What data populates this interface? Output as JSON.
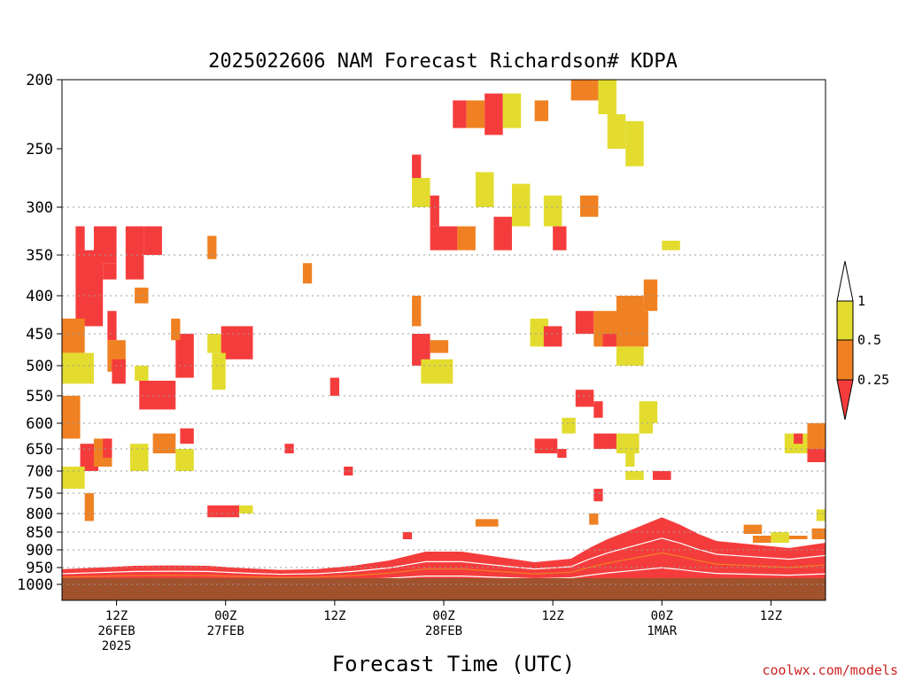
{
  "chart_data": {
    "type": "heatmap",
    "title": "2025022606 NAM Forecast Richardson# KDPA",
    "xlabel": "Forecast Time (UTC)",
    "ylabel": "",
    "credit": "coolwx.com/models",
    "y_scale": "pressure (hPa), inverted, log-like",
    "ylim": [
      1000,
      200
    ],
    "y_ticks": [
      "200",
      "250",
      "300",
      "350",
      "400",
      "450",
      "500",
      "550",
      "600",
      "650",
      "700",
      "750",
      "800",
      "850",
      "900",
      "950",
      "1000"
    ],
    "y_gridlines": [
      "300",
      "350",
      "400",
      "450",
      "500",
      "550",
      "600",
      "650",
      "700",
      "750",
      "800",
      "850",
      "900",
      "950",
      "1000"
    ],
    "xlim_hours": [
      0,
      84
    ],
    "x_ticks": [
      {
        "hour": 6,
        "lines": [
          "12Z",
          "26FEB",
          "2025"
        ]
      },
      {
        "hour": 18,
        "lines": [
          "00Z",
          "27FEB"
        ]
      },
      {
        "hour": 30,
        "lines": [
          "12Z"
        ]
      },
      {
        "hour": 42,
        "lines": [
          "00Z",
          "28FEB"
        ]
      },
      {
        "hour": 54,
        "lines": [
          "12Z"
        ]
      },
      {
        "hour": 66,
        "lines": [
          "00Z",
          "1MAR"
        ]
      },
      {
        "hour": 78,
        "lines": [
          "12Z"
        ]
      }
    ],
    "legend": {
      "placement": "right",
      "levels": [
        "1",
        "0.5",
        "0.25"
      ],
      "bins": [
        {
          "label": "> 1",
          "color": "#ffffff"
        },
        {
          "label": "0.5 - 1",
          "color": "#e3dc2f"
        },
        {
          "label": "0.25 - 0.5",
          "color": "#ef8122"
        },
        {
          "label": "< 0.25",
          "color": "#f53c3c"
        }
      ]
    },
    "ground_color": "#a0522d",
    "colors": {
      "low": "#f53c3c",
      "mid": "#ef8122",
      "high": "#e3dc2f",
      "ground": "#a0522d",
      "credit": "#cc2222"
    },
    "blocks": [
      {
        "h": [
          1.5,
          2.5
        ],
        "p": [
          320,
          345
        ],
        "c": "low"
      },
      {
        "h": [
          1.5,
          4.5
        ],
        "p": [
          345,
          440
        ],
        "c": "low"
      },
      {
        "h": [
          0,
          2.5
        ],
        "p": [
          430,
          480
        ],
        "c": "mid"
      },
      {
        "h": [
          0,
          3.5
        ],
        "p": [
          480,
          530
        ],
        "c": "high"
      },
      {
        "h": [
          3.5,
          6
        ],
        "p": [
          320,
          360
        ],
        "c": "low"
      },
      {
        "h": [
          4.5,
          6
        ],
        "p": [
          360,
          380
        ],
        "c": "low"
      },
      {
        "h": [
          5,
          6
        ],
        "p": [
          420,
          460
        ],
        "c": "low"
      },
      {
        "h": [
          5,
          7
        ],
        "p": [
          460,
          510
        ],
        "c": "mid"
      },
      {
        "h": [
          5.5,
          7
        ],
        "p": [
          490,
          530
        ],
        "c": "low"
      },
      {
        "h": [
          7,
          9
        ],
        "p": [
          320,
          380
        ],
        "c": "low"
      },
      {
        "h": [
          9,
          11
        ],
        "p": [
          320,
          350
        ],
        "c": "low"
      },
      {
        "h": [
          8,
          9.5
        ],
        "p": [
          390,
          410
        ],
        "c": "mid"
      },
      {
        "h": [
          8,
          9.5
        ],
        "p": [
          500,
          525
        ],
        "c": "high"
      },
      {
        "h": [
          8.5,
          12.5
        ],
        "p": [
          525,
          575
        ],
        "c": "low"
      },
      {
        "h": [
          12.5,
          14.5
        ],
        "p": [
          450,
          520
        ],
        "c": "low"
      },
      {
        "h": [
          12,
          13
        ],
        "p": [
          430,
          460
        ],
        "c": "mid"
      },
      {
        "h": [
          0,
          2
        ],
        "p": [
          550,
          630
        ],
        "c": "mid"
      },
      {
        "h": [
          2,
          4
        ],
        "p": [
          640,
          700
        ],
        "c": "low"
      },
      {
        "h": [
          3.5,
          5.5
        ],
        "p": [
          630,
          690
        ],
        "c": "mid"
      },
      {
        "h": [
          0,
          2.5
        ],
        "p": [
          690,
          740
        ],
        "c": "high"
      },
      {
        "h": [
          2.5,
          3.5
        ],
        "p": [
          750,
          820
        ],
        "c": "mid"
      },
      {
        "h": [
          4.5,
          5.5
        ],
        "p": [
          630,
          670
        ],
        "c": "low"
      },
      {
        "h": [
          7.5,
          9.5
        ],
        "p": [
          640,
          700
        ],
        "c": "high"
      },
      {
        "h": [
          10,
          12.5
        ],
        "p": [
          620,
          660
        ],
        "c": "mid"
      },
      {
        "h": [
          12.5,
          14.5
        ],
        "p": [
          650,
          700
        ],
        "c": "high"
      },
      {
        "h": [
          13,
          14.5
        ],
        "p": [
          610,
          640
        ],
        "c": "low"
      },
      {
        "h": [
          16,
          17
        ],
        "p": [
          330,
          355
        ],
        "c": "mid"
      },
      {
        "h": [
          17.5,
          21
        ],
        "p": [
          440,
          490
        ],
        "c": "low"
      },
      {
        "h": [
          16,
          17.5
        ],
        "p": [
          450,
          480
        ],
        "c": "high"
      },
      {
        "h": [
          16.5,
          18
        ],
        "p": [
          480,
          540
        ],
        "c": "high"
      },
      {
        "h": [
          16,
          19.5
        ],
        "p": [
          780,
          810
        ],
        "c": "low"
      },
      {
        "h": [
          19.5,
          21
        ],
        "p": [
          780,
          800
        ],
        "c": "high"
      },
      {
        "h": [
          29.5,
          30.5
        ],
        "p": [
          520,
          550
        ],
        "c": "low"
      },
      {
        "h": [
          26.5,
          27.5
        ],
        "p": [
          360,
          385
        ],
        "c": "mid"
      },
      {
        "h": [
          24.5,
          25.5
        ],
        "p": [
          640,
          660
        ],
        "c": "low"
      },
      {
        "h": [
          31,
          32
        ],
        "p": [
          690,
          710
        ],
        "c": "low"
      },
      {
        "h": [
          38.5,
          39.5
        ],
        "p": [
          255,
          275
        ],
        "c": "low"
      },
      {
        "h": [
          38.5,
          40.5
        ],
        "p": [
          275,
          300
        ],
        "c": "high"
      },
      {
        "h": [
          40.5,
          41.5
        ],
        "p": [
          290,
          320
        ],
        "c": "low"
      },
      {
        "h": [
          40.5,
          43.5
        ],
        "p": [
          320,
          345
        ],
        "c": "low"
      },
      {
        "h": [
          43.5,
          45.5
        ],
        "p": [
          320,
          345
        ],
        "c": "mid"
      },
      {
        "h": [
          45.5,
          47.5
        ],
        "p": [
          270,
          300
        ],
        "c": "high"
      },
      {
        "h": [
          47.5,
          49.5
        ],
        "p": [
          310,
          345
        ],
        "c": "low"
      },
      {
        "h": [
          49.5,
          51.5
        ],
        "p": [
          280,
          320
        ],
        "c": "high"
      },
      {
        "h": [
          43,
          44.5
        ],
        "p": [
          215,
          235
        ],
        "c": "low"
      },
      {
        "h": [
          44.5,
          46.5
        ],
        "p": [
          215,
          235
        ],
        "c": "mid"
      },
      {
        "h": [
          46.5,
          48.5
        ],
        "p": [
          210,
          240
        ],
        "c": "low"
      },
      {
        "h": [
          48.5,
          50.5
        ],
        "p": [
          210,
          235
        ],
        "c": "high"
      },
      {
        "h": [
          52,
          53.5
        ],
        "p": [
          215,
          230
        ],
        "c": "mid"
      },
      {
        "h": [
          54,
          55.5
        ],
        "p": [
          320,
          345
        ],
        "c": "low"
      },
      {
        "h": [
          56,
          59
        ],
        "p": [
          200,
          215
        ],
        "c": "mid"
      },
      {
        "h": [
          59,
          61
        ],
        "p": [
          200,
          225
        ],
        "c": "high"
      },
      {
        "h": [
          60,
          62
        ],
        "p": [
          225,
          250
        ],
        "c": "high"
      },
      {
        "h": [
          62,
          64
        ],
        "p": [
          230,
          265
        ],
        "c": "high"
      },
      {
        "h": [
          57,
          59
        ],
        "p": [
          290,
          310
        ],
        "c": "mid"
      },
      {
        "h": [
          53,
          55
        ],
        "p": [
          290,
          320
        ],
        "c": "high"
      },
      {
        "h": [
          66,
          68
        ],
        "p": [
          335,
          345
        ],
        "c": "high"
      },
      {
        "h": [
          38.5,
          40.5
        ],
        "p": [
          450,
          500
        ],
        "c": "low"
      },
      {
        "h": [
          40.5,
          42.5
        ],
        "p": [
          460,
          480
        ],
        "c": "mid"
      },
      {
        "h": [
          39.5,
          43
        ],
        "p": [
          490,
          530
        ],
        "c": "high"
      },
      {
        "h": [
          38.5,
          39.5
        ],
        "p": [
          400,
          440
        ],
        "c": "mid"
      },
      {
        "h": [
          51.5,
          53.5
        ],
        "p": [
          430,
          470
        ],
        "c": "high"
      },
      {
        "h": [
          53,
          55
        ],
        "p": [
          440,
          470
        ],
        "c": "low"
      },
      {
        "h": [
          56.5,
          58.5
        ],
        "p": [
          420,
          450
        ],
        "c": "low"
      },
      {
        "h": [
          58.5,
          64.5
        ],
        "p": [
          420,
          470
        ],
        "c": "mid"
      },
      {
        "h": [
          59.5,
          61
        ],
        "p": [
          450,
          470
        ],
        "c": "low"
      },
      {
        "h": [
          61,
          64
        ],
        "p": [
          400,
          440
        ],
        "c": "mid"
      },
      {
        "h": [
          64,
          65.5
        ],
        "p": [
          380,
          420
        ],
        "c": "mid"
      },
      {
        "h": [
          61,
          64
        ],
        "p": [
          470,
          500
        ],
        "c": "high"
      },
      {
        "h": [
          56.5,
          58.5
        ],
        "p": [
          540,
          570
        ],
        "c": "low"
      },
      {
        "h": [
          58.5,
          59.5
        ],
        "p": [
          560,
          590
        ],
        "c": "low"
      },
      {
        "h": [
          63.5,
          65.5
        ],
        "p": [
          560,
          600
        ],
        "c": "high"
      },
      {
        "h": [
          55,
          56.5
        ],
        "p": [
          590,
          620
        ],
        "c": "high"
      },
      {
        "h": [
          52,
          54.5
        ],
        "p": [
          630,
          660
        ],
        "c": "low"
      },
      {
        "h": [
          54.5,
          55.5
        ],
        "p": [
          650,
          670
        ],
        "c": "low"
      },
      {
        "h": [
          58.5,
          61
        ],
        "p": [
          620,
          650
        ],
        "c": "low"
      },
      {
        "h": [
          61,
          63.5
        ],
        "p": [
          620,
          660
        ],
        "c": "high"
      },
      {
        "h": [
          63.5,
          65
        ],
        "p": [
          590,
          620
        ],
        "c": "high"
      },
      {
        "h": [
          62,
          63
        ],
        "p": [
          660,
          690
        ],
        "c": "high"
      },
      {
        "h": [
          65,
          67
        ],
        "p": [
          700,
          720
        ],
        "c": "low"
      },
      {
        "h": [
          62,
          64
        ],
        "p": [
          700,
          720
        ],
        "c": "high"
      },
      {
        "h": [
          79.5,
          82
        ],
        "p": [
          620,
          660
        ],
        "c": "high"
      },
      {
        "h": [
          82,
          84
        ],
        "p": [
          600,
          680
        ],
        "c": "mid"
      },
      {
        "h": [
          82,
          84
        ],
        "p": [
          650,
          680
        ],
        "c": "low"
      },
      {
        "h": [
          80.5,
          81.5
        ],
        "p": [
          620,
          640
        ],
        "c": "low"
      },
      {
        "h": [
          83,
          84
        ],
        "p": [
          790,
          820
        ],
        "c": "high"
      },
      {
        "h": [
          58.5,
          59.5
        ],
        "p": [
          740,
          770
        ],
        "c": "low"
      },
      {
        "h": [
          58,
          59
        ],
        "p": [
          800,
          830
        ],
        "c": "mid"
      },
      {
        "h": [
          45.5,
          48
        ],
        "p": [
          815,
          835
        ],
        "c": "mid"
      },
      {
        "h": [
          75,
          77
        ],
        "p": [
          830,
          855
        ],
        "c": "mid"
      },
      {
        "h": [
          76,
          78
        ],
        "p": [
          860,
          880
        ],
        "c": "mid"
      },
      {
        "h": [
          78,
          80
        ],
        "p": [
          850,
          880
        ],
        "c": "high"
      },
      {
        "h": [
          80,
          82
        ],
        "p": [
          860,
          870
        ],
        "c": "mid"
      },
      {
        "h": [
          82.5,
          84
        ],
        "p": [
          840,
          870
        ],
        "c": "mid"
      },
      {
        "h": [
          37.5,
          38.5
        ],
        "p": [
          850,
          870
        ],
        "c": "low"
      }
    ],
    "low_layer": [
      [
        0,
        955
      ],
      [
        4,
        950
      ],
      [
        8,
        945
      ],
      [
        12,
        944
      ],
      [
        16,
        945
      ],
      [
        20,
        952
      ],
      [
        24,
        957
      ],
      [
        28,
        955
      ],
      [
        32,
        945
      ],
      [
        36,
        930
      ],
      [
        40,
        905
      ],
      [
        44,
        905
      ],
      [
        48,
        920
      ],
      [
        52,
        935
      ],
      [
        56,
        925
      ],
      [
        58,
        895
      ],
      [
        60,
        870
      ],
      [
        62,
        850
      ],
      [
        64,
        830
      ],
      [
        66,
        810
      ],
      [
        68,
        830
      ],
      [
        70,
        855
      ],
      [
        72,
        875
      ],
      [
        76,
        885
      ],
      [
        80,
        895
      ],
      [
        84,
        880
      ]
    ]
  }
}
